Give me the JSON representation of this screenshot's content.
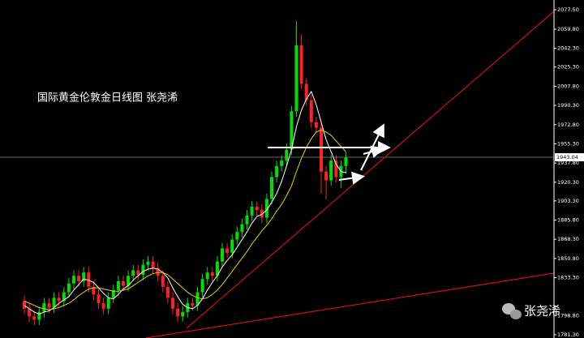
{
  "chart_data": {
    "type": "candlestick",
    "annotation": "国际黄金伦敦金日线图 张尧浠",
    "watermark": "张尧浠",
    "background": "#000000",
    "up_color": "#00e000",
    "down_color": "#ff2020",
    "open": [
      1812,
      1805,
      1798,
      1795,
      1802,
      1810,
      1806,
      1815,
      1812,
      1820,
      1828,
      1835,
      1830,
      1838,
      1825,
      1818,
      1810,
      1805,
      1815,
      1822,
      1830,
      1826,
      1835,
      1840,
      1836,
      1845,
      1848,
      1842,
      1835,
      1825,
      1815,
      1805,
      1798,
      1802,
      1810,
      1808,
      1820,
      1832,
      1838,
      1835,
      1848,
      1860,
      1856,
      1868,
      1875,
      1882,
      1890,
      1898,
      1895,
      1888,
      1905,
      1925,
      1935,
      1940,
      1950,
      1985,
      2045,
      2010,
      1995,
      1975,
      1970,
      1930,
      1922,
      1940,
      1925,
      1935
    ],
    "high": [
      1817,
      1810,
      1803,
      1807,
      1815,
      1815,
      1820,
      1820,
      1825,
      1833,
      1840,
      1840,
      1843,
      1843,
      1830,
      1823,
      1815,
      1820,
      1827,
      1835,
      1835,
      1840,
      1845,
      1845,
      1850,
      1853,
      1853,
      1847,
      1840,
      1830,
      1820,
      1810,
      1807,
      1815,
      1815,
      1825,
      1837,
      1843,
      1843,
      1853,
      1865,
      1865,
      1873,
      1880,
      1887,
      1895,
      1903,
      1903,
      1900,
      1910,
      1930,
      1940,
      1945,
      1955,
      1990,
      2067,
      2055,
      2015,
      2000,
      1980,
      1975,
      1935,
      1945,
      1945,
      1940,
      1948
    ],
    "low": [
      1800,
      1793,
      1790,
      1790,
      1797,
      1801,
      1801,
      1807,
      1807,
      1815,
      1823,
      1825,
      1825,
      1820,
      1813,
      1805,
      1800,
      1800,
      1810,
      1817,
      1821,
      1821,
      1830,
      1831,
      1831,
      1840,
      1837,
      1830,
      1820,
      1810,
      1800,
      1793,
      1793,
      1797,
      1803,
      1803,
      1815,
      1827,
      1830,
      1830,
      1843,
      1851,
      1851,
      1863,
      1870,
      1877,
      1885,
      1890,
      1883,
      1883,
      1900,
      1920,
      1930,
      1935,
      1945,
      1980,
      2005,
      1990,
      1970,
      1965,
      1910,
      1905,
      1917,
      1920,
      1915,
      1928
    ],
    "close": [
      1805,
      1798,
      1795,
      1802,
      1810,
      1806,
      1815,
      1812,
      1820,
      1828,
      1835,
      1830,
      1838,
      1825,
      1818,
      1810,
      1805,
      1815,
      1822,
      1830,
      1826,
      1835,
      1840,
      1836,
      1845,
      1848,
      1842,
      1835,
      1825,
      1815,
      1805,
      1798,
      1802,
      1810,
      1808,
      1820,
      1832,
      1838,
      1835,
      1848,
      1860,
      1856,
      1868,
      1875,
      1882,
      1890,
      1898,
      1895,
      1888,
      1905,
      1925,
      1935,
      1940,
      1950,
      1985,
      2045,
      2010,
      1995,
      1975,
      1970,
      1930,
      1922,
      1940,
      1925,
      1935,
      1943.04
    ],
    "series": [
      {
        "color": "#ffffff",
        "values": [
          1808,
          1805,
          1802,
          1800,
          1802,
          1803,
          1806,
          1810,
          1813,
          1816,
          1822,
          1827,
          1832,
          1831,
          1829,
          1824,
          1819,
          1815,
          1814,
          1818,
          1823,
          1826,
          1831,
          1835,
          1839,
          1841,
          1842,
          1841,
          1838,
          1833,
          1824,
          1816,
          1809,
          1806,
          1805,
          1808,
          1814,
          1822,
          1829,
          1835,
          1843,
          1849,
          1854,
          1861,
          1868,
          1875,
          1883,
          1889,
          1891,
          1895,
          1902,
          1910,
          1921,
          1935,
          1950,
          1971,
          1986,
          1996,
          2003,
          1991,
          1975,
          1959,
          1948,
          1937,
          1930,
          1929
        ]
      },
      {
        "color": "#e6d200",
        "values": [
          1812,
          1810,
          1808,
          1806,
          1805,
          1804,
          1805,
          1806,
          1808,
          1810,
          1813,
          1817,
          1820,
          1823,
          1824,
          1824,
          1823,
          1822,
          1821,
          1821,
          1822,
          1823,
          1826,
          1829,
          1832,
          1835,
          1837,
          1838,
          1838,
          1836,
          1832,
          1828,
          1824,
          1820,
          1817,
          1815,
          1814,
          1815,
          1818,
          1822,
          1827,
          1833,
          1839,
          1845,
          1851,
          1857,
          1864,
          1870,
          1876,
          1881,
          1887,
          1894,
          1900,
          1908,
          1917,
          1930,
          1942,
          1952,
          1960,
          1966,
          1968,
          1966,
          1963,
          1958,
          1953,
          1948
        ]
      }
    ],
    "current_price": 1943.04,
    "ylim": [
      1778.3,
      2086.4
    ],
    "yticks": [
      {
        "value": 2077.5,
        "label": "2077.50"
      },
      {
        "value": 2059.8,
        "label": "2059.80"
      },
      {
        "value": 2042.3,
        "label": "2042.30"
      },
      {
        "value": 2025.3,
        "label": "2025.30"
      },
      {
        "value": 2007.8,
        "label": "2007.80"
      },
      {
        "value": 1990.3,
        "label": "1990.30"
      },
      {
        "value": 1972.8,
        "label": "1972.80"
      },
      {
        "value": 1955.3,
        "label": "1955.30"
      },
      {
        "value": 1937.8,
        "label": "1937.80"
      },
      {
        "value": 1920.3,
        "label": "1920.30"
      },
      {
        "value": 1903.3,
        "label": "1903.30"
      },
      {
        "value": 1885.8,
        "label": "1885.80"
      },
      {
        "value": 1868.3,
        "label": "1868.30"
      },
      {
        "value": 1850.8,
        "label": "1850.80"
      },
      {
        "value": 1833.3,
        "label": "1833.30"
      },
      {
        "value": 1798.8,
        "label": "1798.80"
      },
      {
        "value": 1781.3,
        "label": "1781.30"
      }
    ]
  }
}
